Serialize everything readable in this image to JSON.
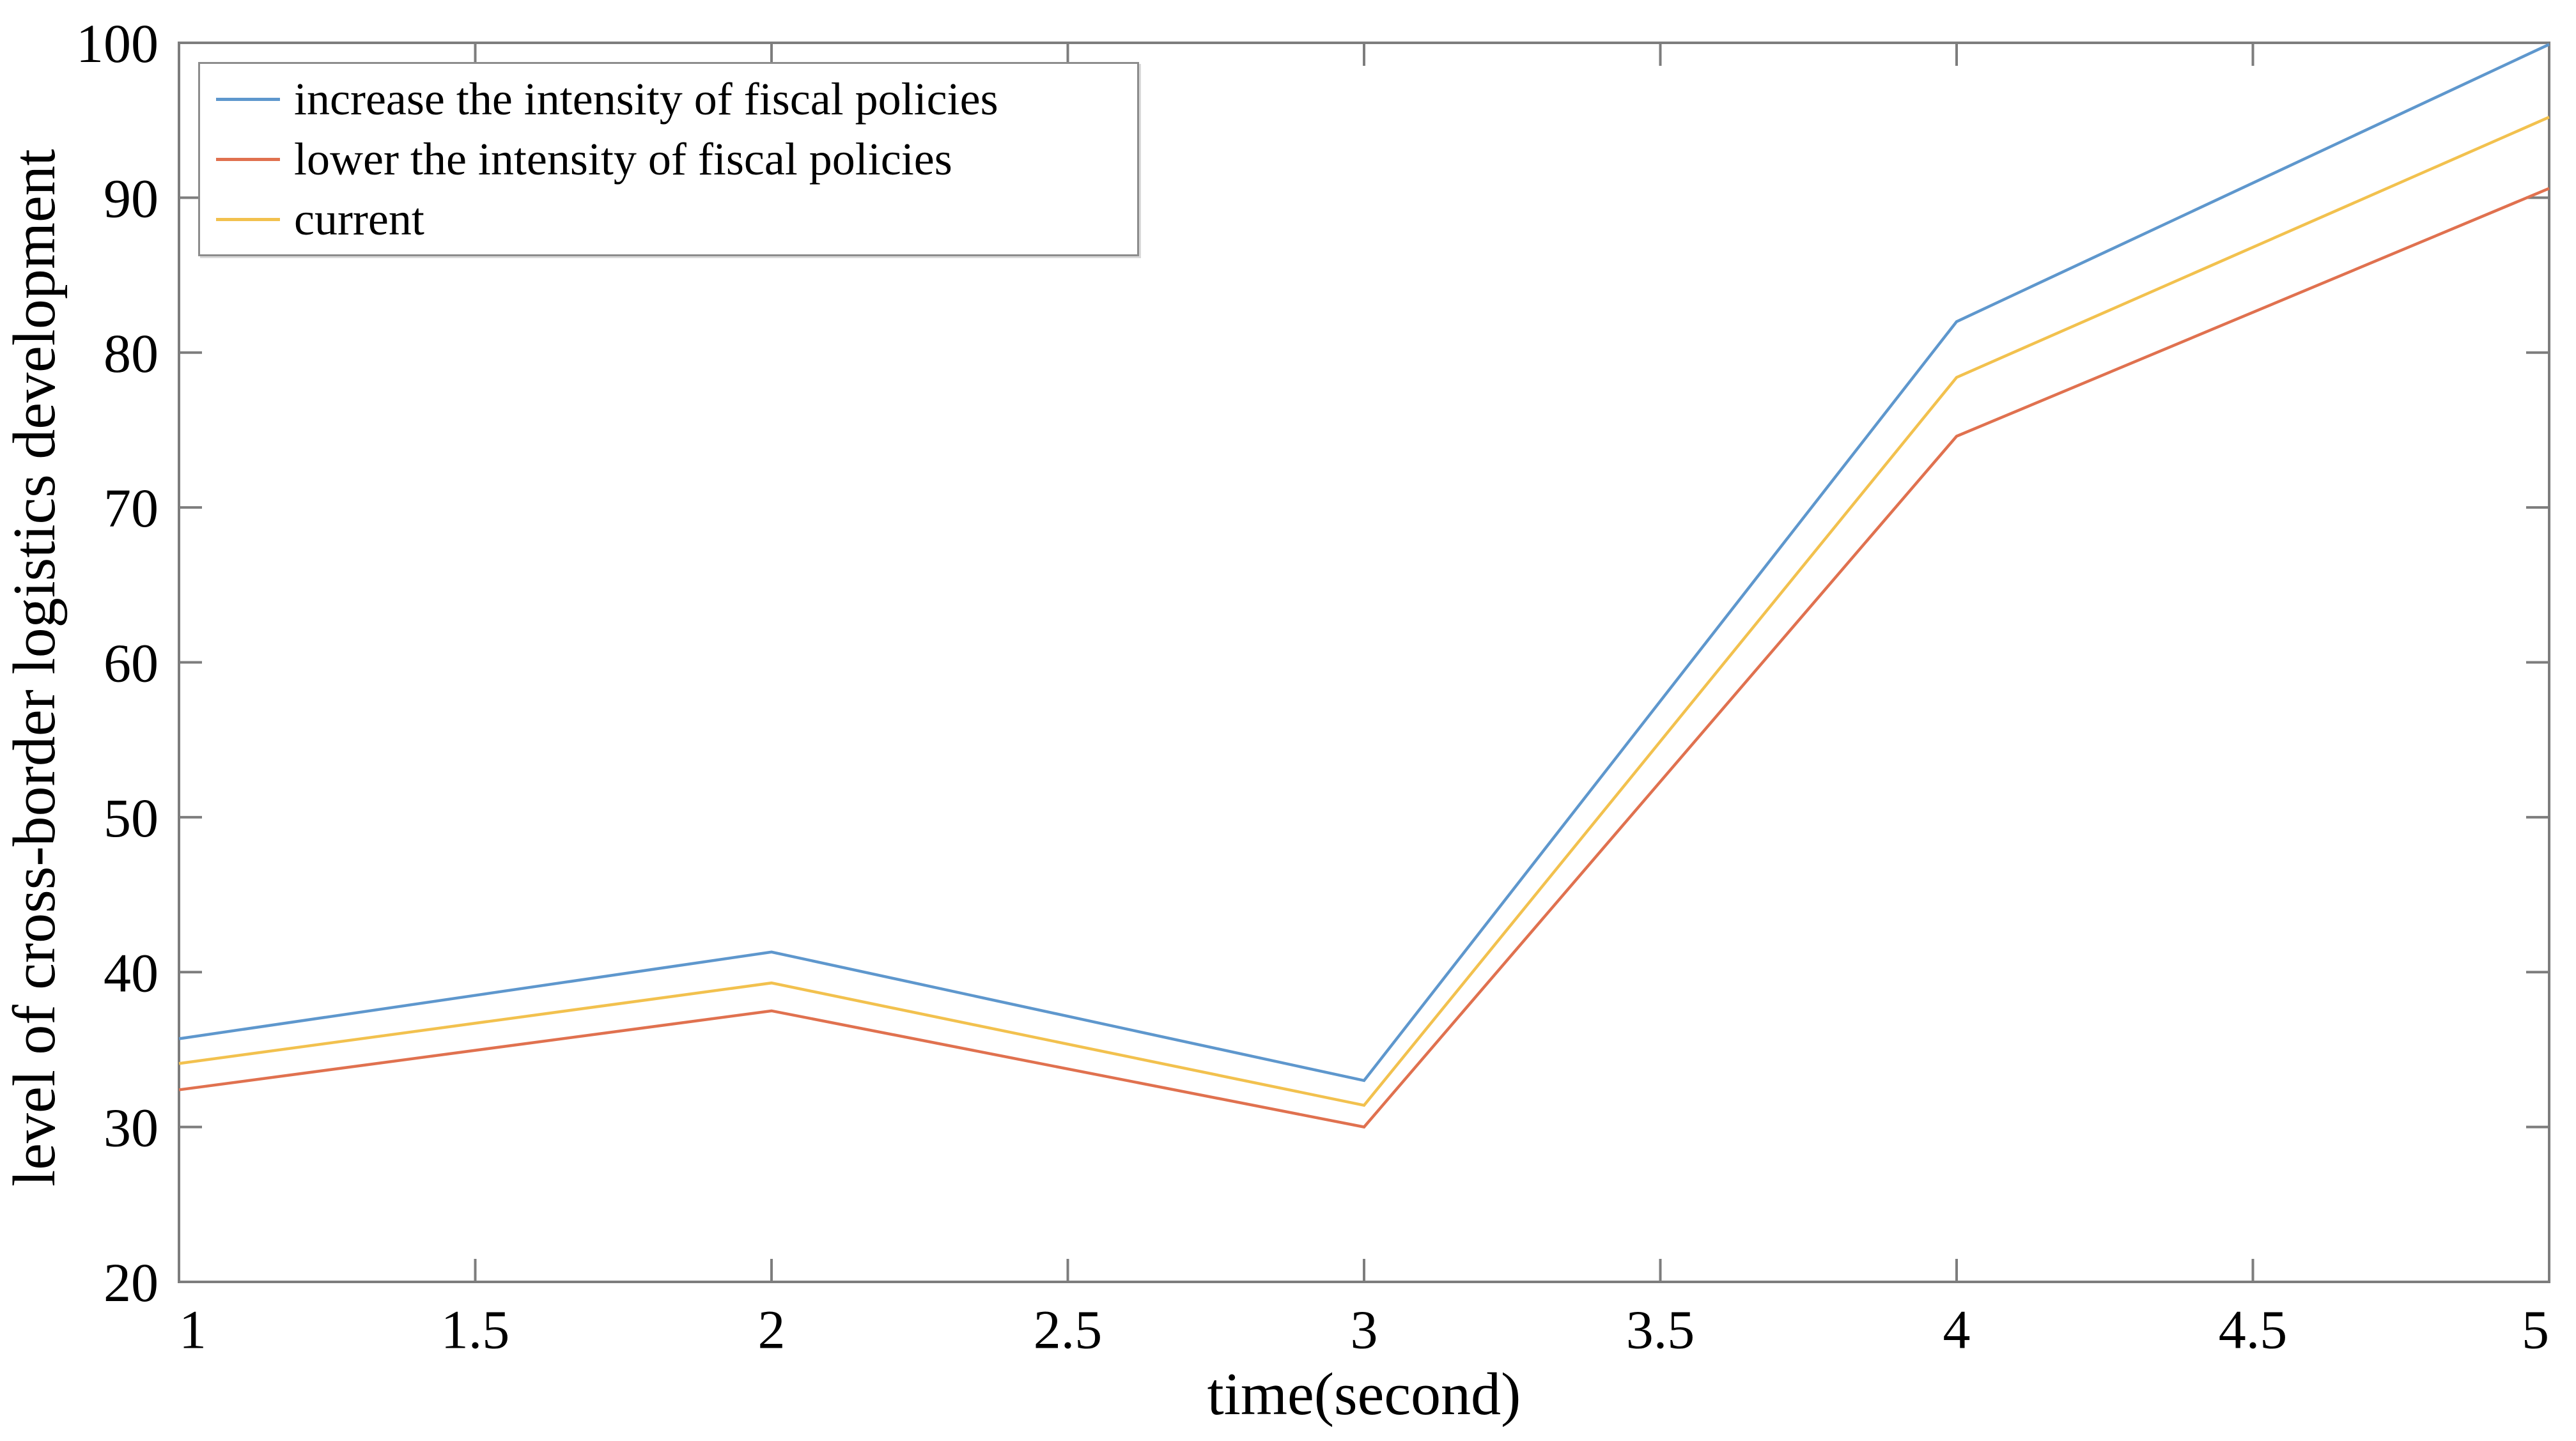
{
  "chart_data": {
    "type": "line",
    "x": [
      1,
      2,
      3,
      4,
      5
    ],
    "series": [
      {
        "name": "increase the intensity of fiscal policies",
        "color": "#5e97cd",
        "values": [
          35.7,
          41.3,
          33.0,
          82.0,
          99.9
        ]
      },
      {
        "name": "lower the intensity of fiscal policies",
        "color": "#e0714f",
        "values": [
          32.4,
          37.5,
          30.0,
          74.6,
          90.6
        ]
      },
      {
        "name": "current",
        "color": "#f2c14e",
        "values": [
          34.1,
          39.3,
          31.4,
          78.4,
          95.2
        ]
      }
    ],
    "title": "",
    "xlabel": "time(second)",
    "ylabel": "level of cross-border logistics development",
    "xlim": [
      1,
      5
    ],
    "ylim": [
      20,
      100
    ],
    "xticks": [
      1,
      1.5,
      2,
      2.5,
      3,
      3.5,
      4,
      4.5,
      5
    ],
    "xtick_labels": [
      "1",
      "1.5",
      "2",
      "2.5",
      "3",
      "3.5",
      "4",
      "4.5",
      "5"
    ],
    "yticks": [
      20,
      30,
      40,
      50,
      60,
      70,
      80,
      90,
      100
    ],
    "ytick_labels": [
      "20",
      "30",
      "40",
      "50",
      "60",
      "70",
      "80",
      "90",
      "100"
    ],
    "grid": false,
    "legend": {
      "position": "top-left",
      "boxed": true,
      "entries": [
        "increase the intensity of fiscal policies",
        "lower the intensity of fiscal policies",
        "current"
      ]
    },
    "axis_color": "#7d7d7d",
    "text_color": "#000000",
    "background_color": "#ffffff"
  }
}
